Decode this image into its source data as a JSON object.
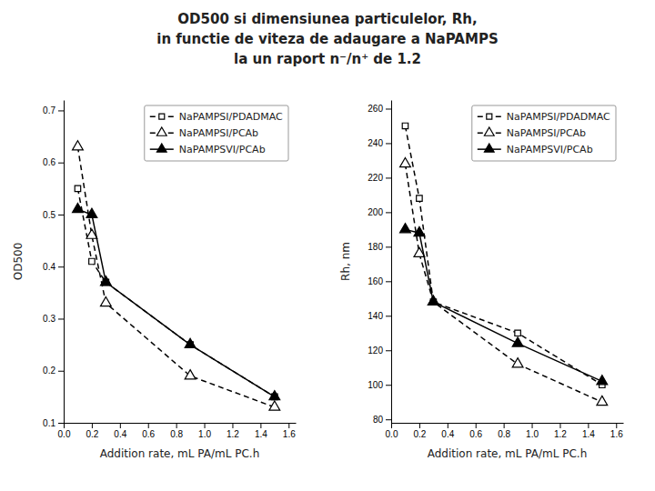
{
  "title": "OD500 si dimensiunea particulelor, Rh,\nin functie de viteza de adaugare a NaPAMPS\nla un raport n⁻/n⁺ de 1.2",
  "chart_data": [
    {
      "type": "line",
      "x": [
        0.1,
        0.2,
        0.3,
        0.9,
        1.5
      ],
      "xlabel": "Addition rate, mL PA/mL PC.h",
      "ylabel": "OD500",
      "xlim": [
        0.0,
        1.65
      ],
      "ylim": [
        0.1,
        0.72
      ],
      "xticks": [
        {
          "value": 0.0,
          "label": "0.0"
        },
        0.2,
        0.4,
        0.6,
        0.8,
        {
          "value": 1.0,
          "label": "1.0"
        },
        1.2,
        1.4,
        1.6
      ],
      "yticks": [
        0.1,
        0.2,
        0.3,
        0.4,
        0.5,
        0.6,
        0.7
      ],
      "grid": false,
      "legend": "upper right",
      "series": [
        {
          "name": "NaPAMPSI/PDADMAC",
          "color": "#000000",
          "marker": "square-open",
          "line_style": "dashed",
          "values": [
            0.55,
            0.41,
            0.37,
            0.25,
            0.15
          ]
        },
        {
          "name": "NaPAMPSI/PCAb",
          "color": "#000000",
          "marker": "triangle-open",
          "line_style": "dashed",
          "values": [
            0.63,
            0.46,
            0.33,
            0.19,
            0.13
          ]
        },
        {
          "name": "NaPAMPSVI/PCAb",
          "color": "#000000",
          "marker": "triangle",
          "line_style": "solid",
          "values": [
            0.51,
            0.5,
            0.37,
            0.25,
            0.15
          ]
        }
      ]
    },
    {
      "type": "line",
      "x": [
        0.1,
        0.2,
        0.3,
        0.9,
        1.5
      ],
      "xlabel": "Addition rate, mL PA/mL PC.h",
      "ylabel": "Rh, nm",
      "xlim": [
        0.0,
        1.65
      ],
      "ylim": [
        78,
        265
      ],
      "xticks": [
        {
          "value": 0.0,
          "label": "0.0"
        },
        0.2,
        0.4,
        0.6,
        0.8,
        {
          "value": 1.0,
          "label": "1.0"
        },
        1.2,
        1.4,
        1.6
      ],
      "yticks": [
        80,
        100,
        120,
        140,
        160,
        180,
        200,
        220,
        240,
        260
      ],
      "grid": false,
      "legend": "upper right",
      "series": [
        {
          "name": "NaPAMPSI/PDADMAC",
          "color": "#000000",
          "marker": "square-open",
          "line_style": "dashed",
          "values": [
            250,
            208,
            148,
            130,
            100
          ]
        },
        {
          "name": "NaPAMPSI/PCAb",
          "color": "#000000",
          "marker": "triangle-open",
          "line_style": "dashed",
          "values": [
            228,
            176,
            148,
            112,
            90
          ]
        },
        {
          "name": "NaPAMPSVI/PCAb",
          "color": "#000000",
          "marker": "triangle",
          "line_style": "solid",
          "values": [
            190,
            188,
            148,
            124,
            102
          ]
        }
      ]
    }
  ]
}
